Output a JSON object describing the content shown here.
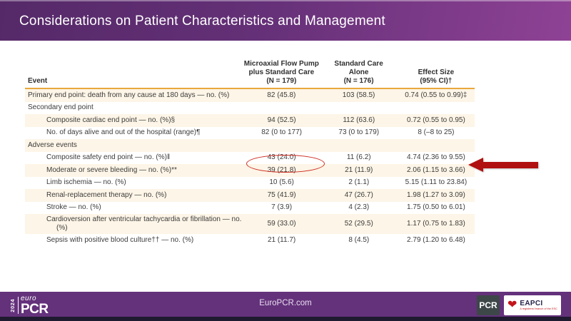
{
  "header": {
    "title": "Considerations on Patient Characteristics and Management"
  },
  "table": {
    "columns": {
      "event": "Event",
      "group1": [
        "Microaxial Flow Pump",
        "plus Standard Care",
        "(N = 179)"
      ],
      "group2": [
        "Standard Care",
        "Alone",
        "(N = 176)"
      ],
      "effect": [
        "Effect Size",
        "(95% CI)†"
      ]
    },
    "rows": [
      {
        "label": "Primary end point: death from any cause at 180 days — no. (%)",
        "indent": false,
        "v1": "82 (45.8)",
        "v2": "103 (58.5)",
        "v3": "0.74 (0.55 to 0.99)‡"
      },
      {
        "label": "Secondary end point",
        "indent": false,
        "v1": "",
        "v2": "",
        "v3": ""
      },
      {
        "label": "Composite cardiac end point — no. (%)§",
        "indent": true,
        "v1": "94 (52.5)",
        "v2": "112 (63.6)",
        "v3": "0.72 (0.55 to 0.95)"
      },
      {
        "label": "No. of days alive and out of the hospital (range)¶",
        "indent": true,
        "v1": "82 (0 to 177)",
        "v2": "73 (0 to 179)",
        "v3": "8 (–8 to 25)"
      },
      {
        "label": "Adverse events",
        "indent": false,
        "v1": "",
        "v2": "",
        "v3": ""
      },
      {
        "label": "Composite safety end point — no. (%)‖",
        "indent": true,
        "v1": "43 (24.0)",
        "v2": "11 (6.2)",
        "v3": "4.74 (2.36 to 9.55)",
        "annotated": true
      },
      {
        "label": "Moderate or severe bleeding — no. (%)**",
        "indent": true,
        "v1": "39 (21.8)",
        "v2": "21 (11.9)",
        "v3": "2.06 (1.15 to 3.66)"
      },
      {
        "label": "Limb ischemia — no. (%)",
        "indent": true,
        "v1": "10 (5.6)",
        "v2": "2 (1.1)",
        "v3": "5.15 (1.11 to 23.84)"
      },
      {
        "label": "Renal-replacement therapy — no. (%)",
        "indent": true,
        "v1": "75 (41.9)",
        "v2": "47 (26.7)",
        "v3": "1.98 (1.27 to 3.09)"
      },
      {
        "label": "Stroke — no. (%)",
        "indent": true,
        "v1": "7 (3.9)",
        "v2": "4 (2.3)",
        "v3": "1.75 (0.50 to 6.01)"
      },
      {
        "label": "Cardioversion after ventricular tachycardia or fibrillation — no. (%)",
        "indent": true,
        "v1": "59 (33.0)",
        "v2": "52 (29.5)",
        "v3": "1.17 (0.75 to 1.83)"
      },
      {
        "label": "Sepsis with positive blood culture†† — no. (%)",
        "indent": true,
        "v1": "21 (11.7)",
        "v2": "8 (4.5)",
        "v3": "2.79 (1.20 to 6.48)"
      }
    ]
  },
  "annotations": {
    "circled_value": "43 (24.0)",
    "arrow_color": "#b01010",
    "circle_color": "#cc2a1e"
  },
  "footer": {
    "site": "EuroPCR.com",
    "logo_year": "2024",
    "logo_euro": "euro",
    "logo_pcr": "PCR",
    "pcr_badge": "PCR",
    "eapci_name": "EAPCI",
    "eapci_sub": "A registered branch of the ESC",
    "heart_icon": "❤"
  },
  "colors": {
    "header_gradient_left": "#552968",
    "header_gradient_right": "#8f4295",
    "row_cream": "#fdf5e7",
    "table_rule_orange": "#e9a83c",
    "footer_purple": "#64317b",
    "bottom_strip": "#1f1a30"
  }
}
